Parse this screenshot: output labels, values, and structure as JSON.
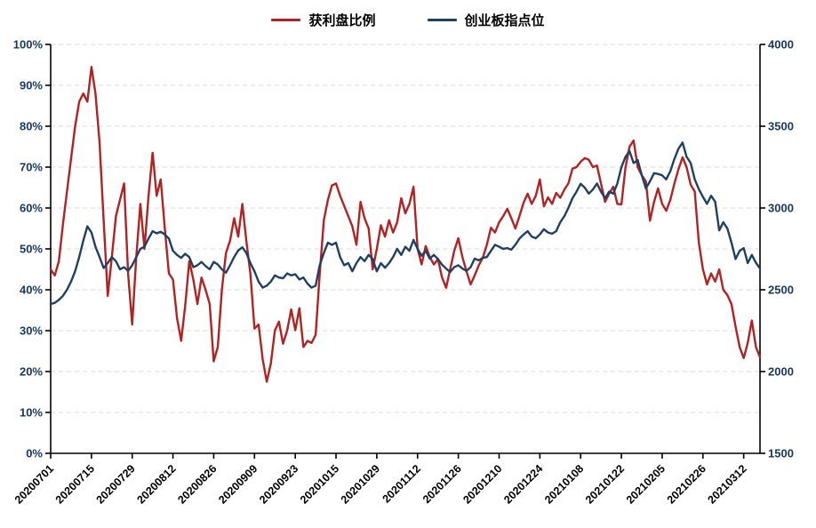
{
  "colors": {
    "red_series": "#B22222",
    "blue_series": "#1F3F63",
    "y_axis_text": "#17375D",
    "x_axis_text": "#000000",
    "grid_line": "#D9D9D9",
    "axis_line": "#000000",
    "background": "#FFFFFF"
  },
  "chart_data": {
    "type": "line",
    "title": "",
    "xlabel": "",
    "ylabel_left": "",
    "ylabel_right": "",
    "grid": "horizontal-dashed",
    "legend_position": "top-center",
    "x_unit": "trading-day",
    "n_points": 175,
    "left_axis": {
      "min": 0,
      "max": 100,
      "step": 10,
      "suffix": "%"
    },
    "right_axis": {
      "min": 1500,
      "max": 4000,
      "step": 500,
      "suffix": ""
    },
    "tick_day_indices": [
      0,
      10,
      20,
      30,
      40,
      50,
      60,
      70,
      80,
      90,
      100,
      110,
      120,
      130,
      140,
      150,
      160,
      170
    ],
    "tick_labels": [
      "20200701",
      "20200715",
      "20200729",
      "20200812",
      "20200826",
      "20200909",
      "20200923",
      "20201015",
      "20201029",
      "20201112",
      "20201126",
      "20201210",
      "20201224",
      "20210108",
      "20210122",
      "20210205",
      "20210226",
      "20210312"
    ],
    "series": [
      {
        "name": "获利盘比例",
        "axis": "left",
        "color": "#B22222",
        "values": [
          45,
          43.5,
          47,
          56,
          64,
          72,
          80,
          86,
          88,
          86,
          94.5,
          88,
          76,
          57,
          38.5,
          48,
          58,
          62,
          66,
          44,
          31.5,
          48,
          61,
          50,
          63,
          73.5,
          63,
          67,
          55,
          44,
          42.5,
          33,
          27.5,
          36,
          47,
          42.5,
          36.5,
          43,
          40,
          36.5,
          22.5,
          26,
          40,
          49,
          52,
          57.5,
          53,
          61,
          52,
          43.9,
          30.5,
          31.5,
          23,
          17.5,
          22,
          30,
          32.2,
          26.8,
          30,
          35.2,
          30.1,
          35.5,
          26,
          27.5,
          27,
          29,
          44,
          57,
          62,
          65.5,
          66,
          63,
          60.5,
          58,
          55.5,
          51,
          61.5,
          57.5,
          55,
          45,
          50,
          55.8,
          53,
          57,
          54,
          56.5,
          62.4,
          58.7,
          61,
          65.2,
          50,
          46.2,
          50.7,
          48,
          46.2,
          47.5,
          43,
          40.5,
          45,
          49.5,
          52.6,
          48,
          44.5,
          41.3,
          43.5,
          46,
          47.8,
          51,
          55.2,
          54,
          56.5,
          58,
          59.8,
          57.5,
          55,
          58,
          61.3,
          63.5,
          61,
          63,
          67,
          60.4,
          62.6,
          61,
          63.7,
          62.5,
          64.5,
          66,
          69.6,
          70,
          71.3,
          72.2,
          71.8,
          70,
          70.4,
          66,
          61.5,
          63.5,
          65.2,
          61,
          60.9,
          70,
          75,
          76.5,
          70,
          68,
          66.5,
          56.9,
          61.5,
          64.8,
          61,
          59.3,
          62,
          66,
          69.5,
          72.4,
          70,
          65.7,
          64,
          51.5,
          45,
          41.3,
          44,
          42,
          45,
          40,
          38.7,
          36.5,
          31,
          26,
          23.3,
          27,
          32.5,
          26,
          23.5
        ]
      },
      {
        "name": "创业板指点位",
        "axis": "right",
        "color": "#1F3F63",
        "values": [
          2413,
          2420,
          2438,
          2463,
          2500,
          2550,
          2613,
          2700,
          2800,
          2888,
          2850,
          2763,
          2700,
          2633,
          2663,
          2700,
          2675,
          2625,
          2638,
          2615,
          2650,
          2700,
          2750,
          2763,
          2813,
          2858,
          2845,
          2855,
          2838,
          2813,
          2738,
          2713,
          2695,
          2720,
          2700,
          2638,
          2650,
          2670,
          2645,
          2625,
          2670,
          2655,
          2625,
          2605,
          2650,
          2700,
          2740,
          2760,
          2725,
          2663,
          2613,
          2550,
          2513,
          2525,
          2550,
          2588,
          2575,
          2570,
          2600,
          2588,
          2595,
          2563,
          2575,
          2538,
          2513,
          2525,
          2650,
          2725,
          2788,
          2775,
          2788,
          2700,
          2650,
          2663,
          2613,
          2663,
          2700,
          2675,
          2713,
          2688,
          2613,
          2663,
          2635,
          2663,
          2700,
          2750,
          2713,
          2763,
          2738,
          2805,
          2750,
          2708,
          2738,
          2690,
          2713,
          2688,
          2653,
          2630,
          2608,
          2638,
          2650,
          2630,
          2615,
          2638,
          2690,
          2680,
          2695,
          2700,
          2738,
          2775,
          2763,
          2750,
          2755,
          2745,
          2775,
          2813,
          2838,
          2858,
          2825,
          2815,
          2838,
          2870,
          2850,
          2843,
          2858,
          2913,
          2950,
          3000,
          3060,
          3100,
          3148,
          3125,
          3088,
          3113,
          3150,
          3100,
          3060,
          3100,
          3088,
          3150,
          3250,
          3313,
          3348,
          3275,
          3293,
          3200,
          3120,
          3163,
          3213,
          3208,
          3200,
          3175,
          3225,
          3300,
          3363,
          3400,
          3313,
          3275,
          3175,
          3115,
          3068,
          3025,
          3075,
          3038,
          2863,
          2913,
          2875,
          2788,
          2688,
          2738,
          2755,
          2663,
          2713,
          2665,
          2630
        ]
      }
    ]
  },
  "legend": {
    "item1": "获利盘比例",
    "item2": "创业板指点位"
  }
}
